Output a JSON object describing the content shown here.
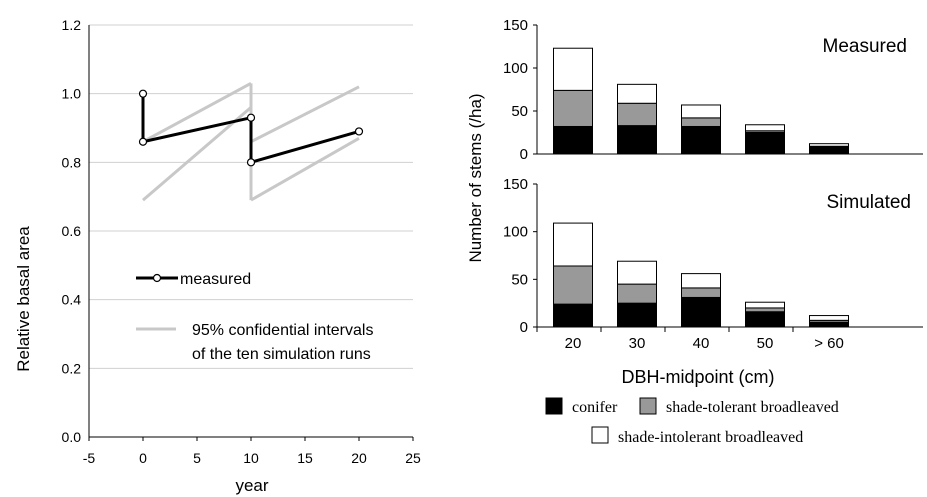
{
  "chart_data": [
    {
      "type": "line",
      "xlabel": "year",
      "ylabel": "Relative basal area",
      "xlim": [
        -5,
        25
      ],
      "ylim": [
        0,
        1.2
      ],
      "x_ticks": [
        "-5",
        "0",
        "5",
        "10",
        "15",
        "20",
        "25"
      ],
      "y_ticks": [
        "0.0",
        "0.2",
        "0.4",
        "0.6",
        "0.8",
        "1.0",
        "1.2"
      ],
      "grid": "horizontal",
      "legend": {
        "measured": "measured",
        "ci_line1": "95% confidential intervals",
        "ci_line2": "of the ten simulation runs"
      },
      "series": [
        {
          "name": "measured",
          "color": "#000000",
          "points": [
            [
              0,
              1.0
            ],
            [
              0,
              0.86
            ],
            [
              10,
              0.93
            ],
            [
              10,
              0.8
            ],
            [
              20,
              0.89
            ]
          ]
        },
        {
          "name": "95% confidential intervals of the ten simulation runs",
          "color": "#c8c8c8",
          "segments": [
            [
              [
                0,
                0.69
              ],
              [
                10,
                0.96
              ]
            ],
            [
              [
                0,
                0.86
              ],
              [
                10,
                1.03
              ]
            ],
            [
              [
                10,
                1.03
              ],
              [
                10,
                0.69
              ]
            ],
            [
              [
                10,
                0.69
              ],
              [
                20,
                0.87
              ]
            ],
            [
              [
                10,
                0.86
              ],
              [
                20,
                1.02
              ]
            ]
          ]
        }
      ]
    },
    {
      "type": "bar",
      "stacked": true,
      "title": "Measured",
      "ylabel": "Number of stems (/ha)",
      "ylim": [
        0,
        150
      ],
      "y_ticks": [
        "0",
        "50",
        "100",
        "150"
      ],
      "categories": [
        "20",
        "30",
        "40",
        "50",
        "> 60"
      ],
      "series": [
        {
          "name": "conifer",
          "color": "#000000",
          "values": [
            32,
            33,
            32,
            25,
            8
          ]
        },
        {
          "name": "shade-tolerant broadleaved",
          "color": "#999999",
          "values": [
            42,
            26,
            10,
            2,
            1
          ]
        },
        {
          "name": "shade-intolerant broadleaved",
          "color": "#ffffff",
          "values": [
            49,
            22,
            15,
            7,
            3
          ]
        }
      ]
    },
    {
      "type": "bar",
      "stacked": true,
      "title": "Simulated",
      "xlabel": "DBH-midpoint (cm)",
      "ylim": [
        0,
        150
      ],
      "y_ticks": [
        "0",
        "50",
        "100",
        "150"
      ],
      "categories": [
        "20",
        "30",
        "40",
        "50",
        "> 60"
      ],
      "series": [
        {
          "name": "conifer",
          "color": "#000000",
          "values": [
            24,
            25,
            31,
            16,
            5
          ]
        },
        {
          "name": "shade-tolerant broadleaved",
          "color": "#999999",
          "values": [
            40,
            20,
            10,
            4,
            2
          ]
        },
        {
          "name": "shade-intolerant broadleaved",
          "color": "#ffffff",
          "values": [
            45,
            24,
            15,
            6,
            5
          ]
        }
      ]
    }
  ],
  "bar_legend": {
    "conifer": "conifer",
    "tolerant": "shade-tolerant broadleaved",
    "intolerant": "shade-intolerant broadleaved"
  }
}
